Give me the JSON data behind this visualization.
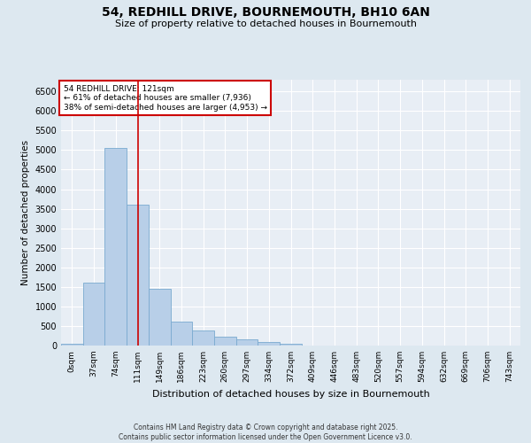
{
  "title": "54, REDHILL DRIVE, BOURNEMOUTH, BH10 6AN",
  "subtitle": "Size of property relative to detached houses in Bournemouth",
  "xlabel": "Distribution of detached houses by size in Bournemouth",
  "ylabel": "Number of detached properties",
  "footer_line1": "Contains HM Land Registry data © Crown copyright and database right 2025.",
  "footer_line2": "Contains public sector information licensed under the Open Government Licence v3.0.",
  "property_label": "54 REDHILL DRIVE: 121sqm",
  "annotation_line2": "← 61% of detached houses are smaller (7,936)",
  "annotation_line3": "38% of semi-detached houses are larger (4,953) →",
  "bar_color": "#b8cfe8",
  "bar_edge_color": "#7aaad0",
  "vline_color": "#cc0000",
  "annotation_box_edgecolor": "#cc0000",
  "bg_color": "#dde8f0",
  "plot_bg_color": "#e8eef5",
  "grid_color": "#ffffff",
  "categories": [
    "0sqm",
    "37sqm",
    "74sqm",
    "111sqm",
    "149sqm",
    "186sqm",
    "223sqm",
    "260sqm",
    "297sqm",
    "334sqm",
    "372sqm",
    "409sqm",
    "446sqm",
    "483sqm",
    "520sqm",
    "557sqm",
    "594sqm",
    "632sqm",
    "669sqm",
    "706sqm",
    "743sqm"
  ],
  "values": [
    50,
    1600,
    5050,
    3600,
    1450,
    620,
    380,
    230,
    170,
    100,
    50,
    0,
    0,
    0,
    0,
    0,
    0,
    0,
    0,
    0,
    0
  ],
  "ylim": [
    0,
    6800
  ],
  "yticks": [
    0,
    500,
    1000,
    1500,
    2000,
    2500,
    3000,
    3500,
    4000,
    4500,
    5000,
    5500,
    6000,
    6500
  ],
  "vline_x": 3.0,
  "figsize": [
    6.0,
    5.0
  ],
  "dpi": 100
}
